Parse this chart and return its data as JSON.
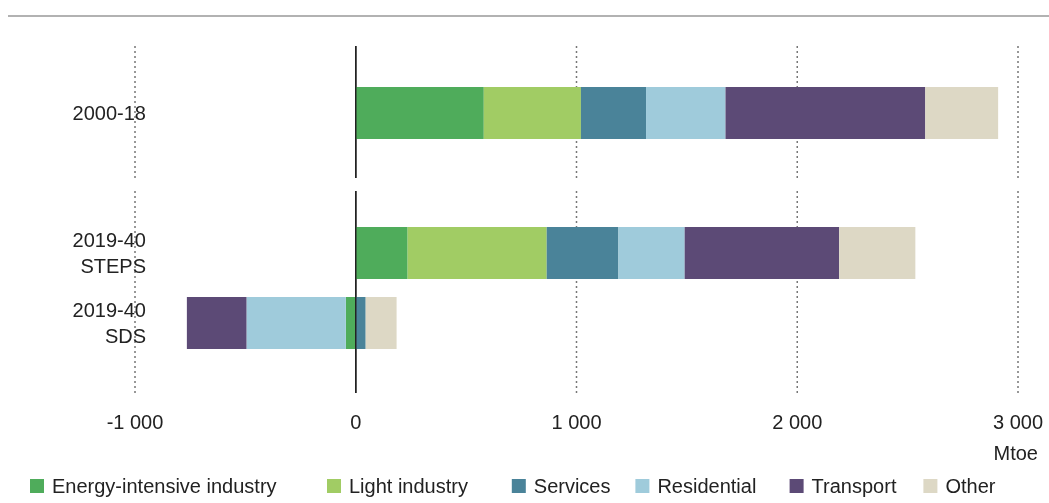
{
  "chart_data": {
    "type": "bar",
    "orientation": "horizontal",
    "stacked": true,
    "categories": [
      "2000-18",
      "2019-40 STEPS",
      "2019-40 SDS"
    ],
    "series": [
      {
        "name": "Energy-intensive industry",
        "color": "#4fac5b",
        "values": [
          580,
          235,
          -45
        ]
      },
      {
        "name": "Light industry",
        "color": "#a1cc64",
        "values": [
          440,
          630,
          0
        ]
      },
      {
        "name": "Services",
        "color": "#4a8399",
        "values": [
          295,
          325,
          45
        ]
      },
      {
        "name": "Residential",
        "color": "#9fcbdb",
        "values": [
          360,
          300,
          -450
        ]
      },
      {
        "name": "Transport",
        "color": "#5c4a76",
        "values": [
          905,
          700,
          -270
        ]
      },
      {
        "name": "Other",
        "color": "#ddd8c5",
        "values": [
          330,
          345,
          140
        ]
      }
    ],
    "xlim": [
      -1000,
      3000
    ],
    "xticks": [
      {
        "value": -1000,
        "label": "-1 000"
      },
      0,
      {
        "value": 1000,
        "label": "1 000"
      },
      {
        "value": 2000,
        "label": "2 000"
      },
      {
        "value": 3000,
        "label": "3 000"
      }
    ],
    "xlabel": "Mtoe",
    "grid": "x",
    "legend": "bottom"
  }
}
